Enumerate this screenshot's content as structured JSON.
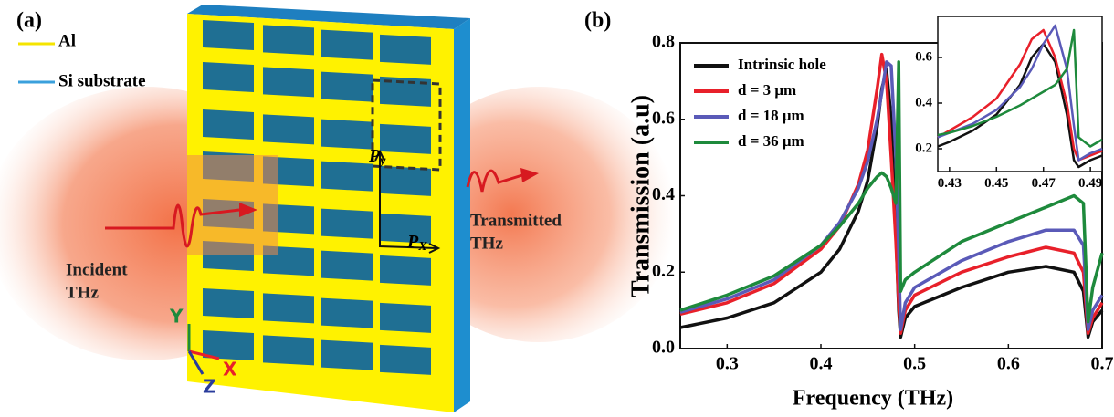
{
  "diagram": {
    "panel_label": "(a)",
    "legend": [
      "Al",
      "Si substrate"
    ],
    "incident": [
      "Incident",
      "THz"
    ],
    "transmitted": [
      "Transmitted",
      "THz"
    ],
    "period_y": {
      "text": "P",
      "sub": "y"
    },
    "period_x": {
      "text": "P",
      "sub": "X"
    },
    "axes": [
      "Y",
      "X",
      "Z"
    ]
  },
  "chart_data": [
    {
      "type": "line",
      "panel_label": "(b)",
      "xlabel": "Frequency (THz)",
      "ylabel": "Transmission (a.u)",
      "x": [
        0.25,
        0.3,
        0.35,
        0.4,
        0.42,
        0.44,
        0.45,
        0.46,
        0.465,
        0.47,
        0.475,
        0.48,
        0.483,
        0.485,
        0.49,
        0.5,
        0.55,
        0.6,
        0.64,
        0.67,
        0.68,
        0.685,
        0.69,
        0.7
      ],
      "xlim": [
        0.25,
        0.7
      ],
      "xticks": [
        0.3,
        0.4,
        0.5,
        0.6,
        0.7
      ],
      "ylim": [
        0,
        0.8
      ],
      "yticks": [
        {
          "value": 0,
          "label": "0.0"
        },
        0.2,
        0.4,
        0.6,
        0.8
      ],
      "series": [
        {
          "name": "Intrinsic hole",
          "color": "#111111",
          "values": [
            0.055,
            0.08,
            0.12,
            0.2,
            0.26,
            0.36,
            0.44,
            0.58,
            0.68,
            0.73,
            0.6,
            0.3,
            0.1,
            0.03,
            0.08,
            0.11,
            0.16,
            0.2,
            0.215,
            0.2,
            0.15,
            0.03,
            0.07,
            0.1
          ]
        },
        {
          "name": "d = 3 μm",
          "color": "#e8202a",
          "values": [
            0.09,
            0.12,
            0.17,
            0.26,
            0.32,
            0.43,
            0.52,
            0.68,
            0.77,
            0.7,
            0.5,
            0.28,
            0.12,
            0.04,
            0.1,
            0.14,
            0.2,
            0.24,
            0.265,
            0.25,
            0.2,
            0.04,
            0.08,
            0.12
          ]
        },
        {
          "name": "d = 18 μm",
          "color": "#5a5ab8",
          "values": [
            0.095,
            0.13,
            0.18,
            0.27,
            0.33,
            0.42,
            0.49,
            0.6,
            0.67,
            0.75,
            0.74,
            0.5,
            0.25,
            0.05,
            0.12,
            0.16,
            0.23,
            0.28,
            0.31,
            0.31,
            0.27,
            0.05,
            0.1,
            0.14
          ]
        },
        {
          "name": "d = 36 μm",
          "color": "#1e8a3c",
          "values": [
            0.1,
            0.14,
            0.19,
            0.27,
            0.32,
            0.38,
            0.42,
            0.45,
            0.46,
            0.45,
            0.42,
            0.38,
            0.75,
            0.15,
            0.18,
            0.2,
            0.28,
            0.33,
            0.37,
            0.4,
            0.38,
            0.07,
            0.16,
            0.25
          ]
        }
      ]
    },
    {
      "type": "line",
      "x": [
        0.425,
        0.43,
        0.44,
        0.45,
        0.46,
        0.465,
        0.47,
        0.475,
        0.48,
        0.483,
        0.485,
        0.49,
        0.495
      ],
      "xlim": [
        0.425,
        0.495
      ],
      "xticks": [
        0.43,
        0.45,
        0.47,
        0.49
      ],
      "ylim": [
        0.1,
        0.78
      ],
      "yticks": [
        0.2,
        0.4,
        0.6
      ],
      "series": [
        {
          "color": "#111111",
          "values": [
            0.21,
            0.23,
            0.28,
            0.35,
            0.48,
            0.6,
            0.66,
            0.58,
            0.35,
            0.15,
            0.12,
            0.15,
            0.17
          ]
        },
        {
          "color": "#e8202a",
          "values": [
            0.25,
            0.28,
            0.34,
            0.42,
            0.57,
            0.68,
            0.72,
            0.6,
            0.4,
            0.2,
            0.15,
            0.17,
            0.19
          ]
        },
        {
          "color": "#5a5ab8",
          "values": [
            0.25,
            0.27,
            0.31,
            0.37,
            0.47,
            0.55,
            0.66,
            0.74,
            0.55,
            0.3,
            0.15,
            0.18,
            0.2
          ]
        },
        {
          "color": "#1e8a3c",
          "values": [
            0.26,
            0.27,
            0.3,
            0.34,
            0.39,
            0.42,
            0.45,
            0.48,
            0.55,
            0.72,
            0.25,
            0.21,
            0.24
          ]
        }
      ]
    }
  ]
}
